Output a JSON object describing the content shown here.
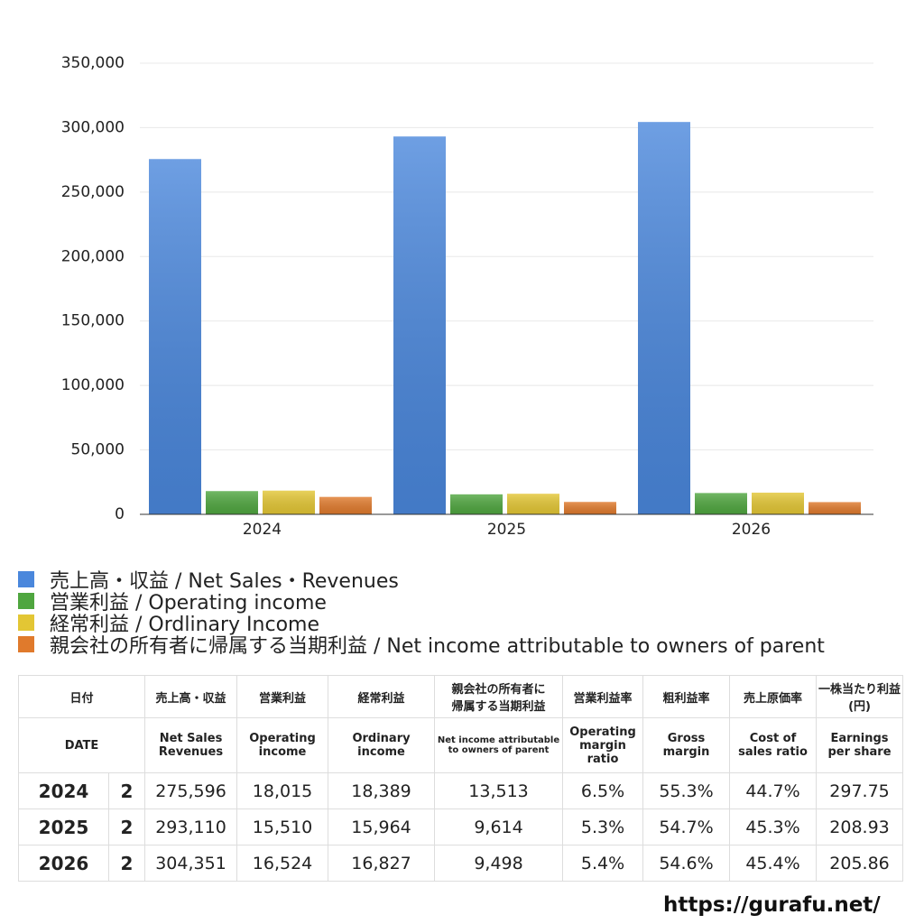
{
  "chart_data": {
    "type": "bar",
    "categories": [
      "2024",
      "2025",
      "2026"
    ],
    "series": [
      {
        "name": "売上高・収益 / Net Sales・Revenues",
        "color": "#4a87dc",
        "values": [
          275596,
          293110,
          304351
        ]
      },
      {
        "name": "営業利益 / Operating income",
        "color": "#4fa63f",
        "values": [
          18015,
          15510,
          16524
        ]
      },
      {
        "name": "経常利益 / Ordlinary Income",
        "color": "#e3c634",
        "values": [
          18389,
          15964,
          16827
        ]
      },
      {
        "name": "親会社の所有者に帰属する当期利益 / Net income attributable to owners of parent",
        "color": "#e07a2c",
        "values": [
          13513,
          9614,
          9498
        ]
      }
    ],
    "ylim": [
      0,
      350000
    ],
    "yticks": [
      0,
      {
        "value": 50000,
        "label": "50,000"
      },
      {
        "value": 100000,
        "label": "100,000"
      },
      {
        "value": 150000,
        "label": "150,000"
      },
      {
        "value": 200000,
        "label": "200,000"
      },
      {
        "value": 250000,
        "label": "250,000"
      },
      {
        "value": 300000,
        "label": "300,000"
      },
      {
        "value": 350000,
        "label": "350,000"
      }
    ],
    "grid": true
  },
  "table": {
    "header": [
      [
        "日付",
        "売上高・収益",
        "営業利益",
        "経常利益",
        "親会社の所有者に\n帰属する当期利益",
        "営業利益率",
        "粗利益率",
        "売上原価率",
        "一株当たり利益\n(円)"
      ],
      [
        "DATE",
        "Net Sales\nRevenues",
        "Operating\nincome",
        "Ordinary\nincome",
        "Net income attributable\nto owners of parent",
        "Operating\nmargin\nratio",
        "Gross\nmargin",
        "Cost of\nsales ratio",
        "Earnings\nper share"
      ]
    ],
    "rows": [
      [
        "2024",
        "2",
        "275,596",
        "18,015",
        "18,389",
        "13,513",
        "6.5%",
        "55.3%",
        "44.7%",
        "297.75"
      ],
      [
        "2025",
        "2",
        "293,110",
        "15,510",
        "15,964",
        "9,614",
        "5.3%",
        "54.7%",
        "45.3%",
        "208.93"
      ],
      [
        "2026",
        "2",
        "304,351",
        "16,524",
        "16,827",
        "9,498",
        "5.4%",
        "54.6%",
        "45.4%",
        "205.86"
      ]
    ]
  },
  "footer": "https://gurafu.net/"
}
